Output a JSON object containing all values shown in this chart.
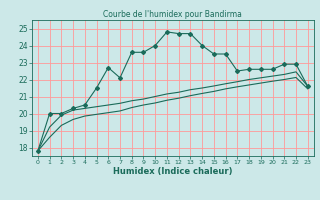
{
  "title": "Courbe de l'humidex pour Bandirma",
  "xlabel": "Humidex (Indice chaleur)",
  "xlim": [
    -0.5,
    23.5
  ],
  "ylim": [
    17.5,
    25.5
  ],
  "yticks": [
    18,
    19,
    20,
    21,
    22,
    23,
    24,
    25
  ],
  "xticks": [
    0,
    1,
    2,
    3,
    4,
    5,
    6,
    7,
    8,
    9,
    10,
    11,
    12,
    13,
    14,
    15,
    16,
    17,
    18,
    19,
    20,
    21,
    22,
    23
  ],
  "bg_color": "#cce8e8",
  "grid_color_major": "#ff9999",
  "grid_color_minor": "#ffcccc",
  "line_color": "#1a6b5a",
  "tick_color": "#1a6b5a",
  "line1_x": [
    0,
    1,
    2,
    3,
    4,
    5,
    6,
    7,
    8,
    9,
    10,
    11,
    12,
    13,
    14,
    15,
    16,
    17,
    18,
    19,
    20,
    21,
    22,
    23
  ],
  "line1_y": [
    17.8,
    20.0,
    20.0,
    20.3,
    20.5,
    21.5,
    22.7,
    22.1,
    23.6,
    23.6,
    24.0,
    24.8,
    24.7,
    24.7,
    24.0,
    23.5,
    23.5,
    22.5,
    22.6,
    22.6,
    22.6,
    22.9,
    22.9,
    21.6
  ],
  "line2_x": [
    0,
    1,
    2,
    3,
    4,
    5,
    6,
    7,
    8,
    9,
    10,
    11,
    12,
    13,
    14,
    15,
    16,
    17,
    18,
    19,
    20,
    21,
    22,
    23
  ],
  "line2_y": [
    17.8,
    19.2,
    19.9,
    20.2,
    20.3,
    20.4,
    20.5,
    20.6,
    20.75,
    20.85,
    21.0,
    21.15,
    21.25,
    21.4,
    21.5,
    21.62,
    21.75,
    21.87,
    22.0,
    22.1,
    22.2,
    22.3,
    22.45,
    21.6
  ],
  "line3_x": [
    0,
    1,
    2,
    3,
    4,
    5,
    6,
    7,
    8,
    9,
    10,
    11,
    12,
    13,
    14,
    15,
    16,
    17,
    18,
    19,
    20,
    21,
    22,
    23
  ],
  "line3_y": [
    17.8,
    18.6,
    19.3,
    19.65,
    19.85,
    19.95,
    20.05,
    20.15,
    20.35,
    20.5,
    20.62,
    20.78,
    20.9,
    21.05,
    21.18,
    21.3,
    21.45,
    21.57,
    21.68,
    21.79,
    21.9,
    22.0,
    22.12,
    21.45
  ]
}
